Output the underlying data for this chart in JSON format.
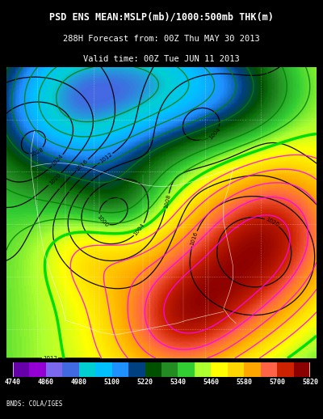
{
  "title_line1": "PSD ENS MEAN:MSLP(mb)/1000:500mb THK(m)",
  "title_line2": "288H Forecast from: 00Z Thu MAY 30 2013",
  "title_line3": "Valid time: 00Z Tue JUN 11 2013",
  "credit": "BNDS: COLA/IGES",
  "colorbar_values": [
    4740,
    4860,
    4980,
    5100,
    5220,
    5340,
    5460,
    5580,
    5700,
    5820
  ],
  "cb_colors": [
    "#6600AA",
    "#9400D3",
    "#7B68EE",
    "#4169E1",
    "#00CED1",
    "#00BFFF",
    "#1E90FF",
    "#004080",
    "#005000",
    "#228B22",
    "#32CD32",
    "#ADFF2F",
    "#FFFF00",
    "#FFD700",
    "#FFA500",
    "#FF6347",
    "#CC2200",
    "#8B0000"
  ],
  "map_colors": [
    "#6600AA",
    "#9400D3",
    "#7B68EE",
    "#4169E1",
    "#00CED1",
    "#00BFFF",
    "#1E90FF",
    "#004080",
    "#005000",
    "#228B22",
    "#32CD32",
    "#ADFF2F",
    "#FFFF00",
    "#FFD700",
    "#FFA500",
    "#FF6347",
    "#CC2200",
    "#8B0000"
  ],
  "bg_color": "#000000",
  "fig_width": 4.0,
  "fig_height": 5.18,
  "vmin": 4740,
  "vmax": 5820
}
